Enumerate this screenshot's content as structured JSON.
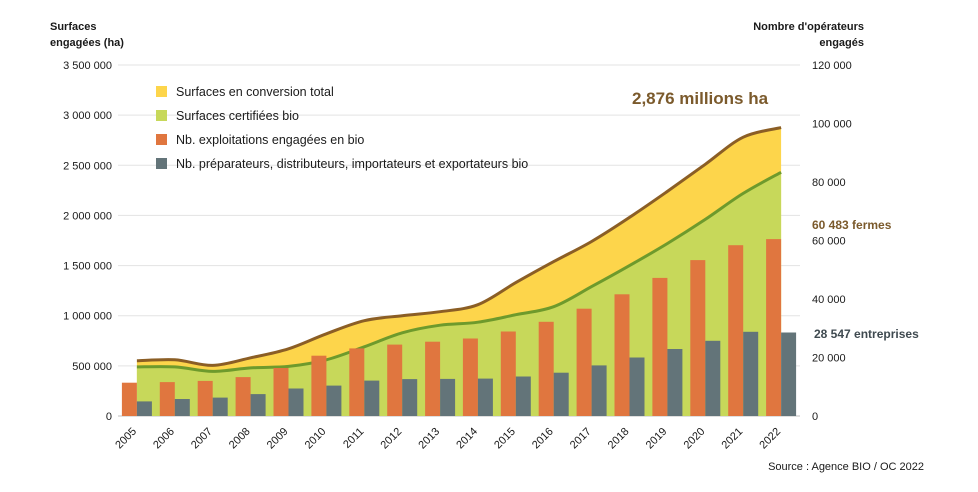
{
  "chart_data": {
    "type": "bar",
    "left_axis_title": [
      "Surfaces",
      "engagées (ha)"
    ],
    "right_axis_title": [
      "Nombre d'opérateurs",
      "engagés"
    ],
    "x": [
      "2005",
      "2006",
      "2007",
      "2008",
      "2009",
      "2010",
      "2011",
      "2012",
      "2013",
      "2014",
      "2015",
      "2016",
      "2017",
      "2018",
      "2019",
      "2020",
      "2021",
      "2022"
    ],
    "left_ticks": [
      "0",
      "500 000",
      "1 000 000",
      "1 500 000",
      "2 000 000",
      "2 500 000",
      "3 000 000",
      "3 500 000"
    ],
    "right_ticks": [
      "0",
      "20 000",
      "40 000",
      "60 000",
      "80 000",
      "100 000",
      "120 000"
    ],
    "ylim_left": [
      0,
      3500000
    ],
    "ylim_right": [
      0,
      120000
    ],
    "grid": true,
    "legend_position": "top-left",
    "series": [
      {
        "name": "Surfaces en conversion total",
        "kind": "area",
        "axis": "left",
        "color": "#fdd54b",
        "line_color": "#8b5e25",
        "values": [
          550000,
          560000,
          505000,
          580000,
          670000,
          820000,
          950000,
          1000000,
          1040000,
          1110000,
          1330000,
          1540000,
          1740000,
          1980000,
          2240000,
          2510000,
          2780000,
          2876000
        ]
      },
      {
        "name": "Surfaces certifiées bio",
        "kind": "area",
        "axis": "left",
        "color": "#c7d85a",
        "line_color": "#6e9a2c",
        "values": [
          490000,
          490000,
          445000,
          480000,
          495000,
          560000,
          690000,
          830000,
          905000,
          935000,
          1010000,
          1090000,
          1290000,
          1500000,
          1720000,
          1960000,
          2220000,
          2430000
        ]
      },
      {
        "name": "Nb. exploitations engagées en bio",
        "kind": "bar",
        "axis": "right",
        "color": "#e0763f",
        "values": [
          11400,
          11600,
          12000,
          13300,
          16400,
          20600,
          23100,
          24400,
          25400,
          26500,
          28900,
          32200,
          36700,
          41600,
          47200,
          53300,
          58400,
          60483
        ]
      },
      {
        "name": "Nb. préparateurs, distributeurs, importateurs et exportateurs bio",
        "kind": "bar",
        "axis": "right",
        "color": "#637479",
        "values": [
          5000,
          5800,
          6300,
          7500,
          9400,
          10400,
          12100,
          12600,
          12700,
          12800,
          13500,
          14800,
          17300,
          20000,
          22900,
          25700,
          28800,
          28547
        ]
      }
    ],
    "annotations": {
      "surface_total": "2,876 millions ha",
      "farms": "60 483 fermes",
      "companies": "28 547 entreprises"
    },
    "source": "Source : Agence BIO / OC 2022"
  }
}
